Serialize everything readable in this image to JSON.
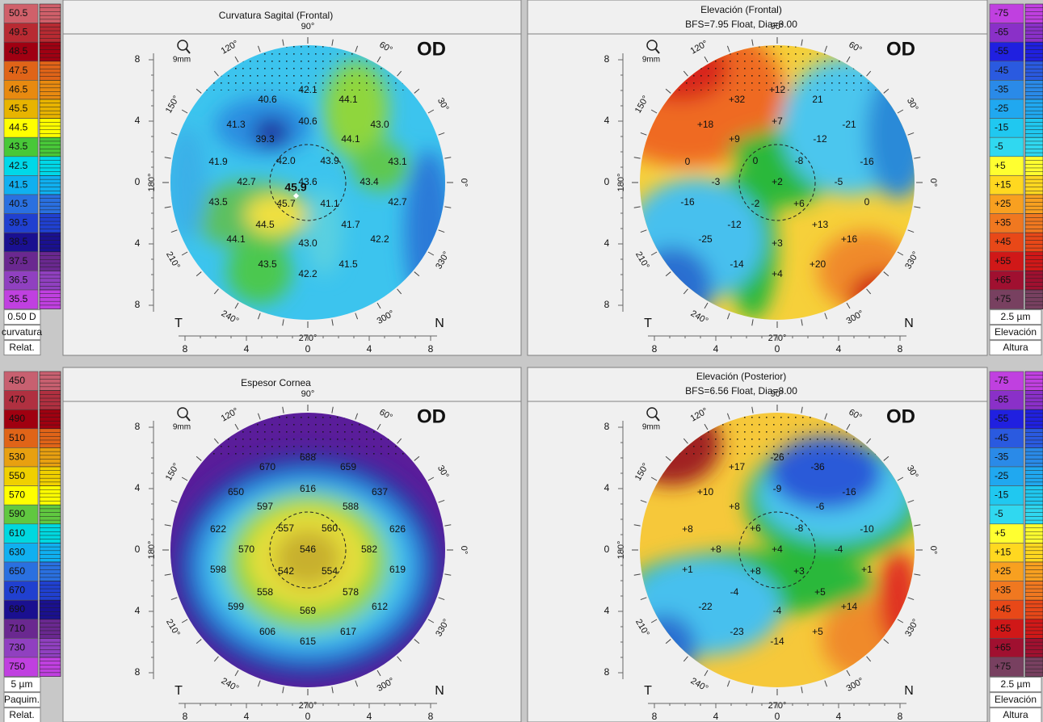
{
  "eye": "OD",
  "zoom": "9mm",
  "temporal": "T",
  "nasal": "N",
  "angles": [
    "90°",
    "60°",
    "30°",
    "0°",
    "330°",
    "300°",
    "270°",
    "240°",
    "210°",
    "180°",
    "150°",
    "120°"
  ],
  "axis_ticks": [
    "8",
    "4",
    "0",
    "4",
    "8"
  ],
  "scales": [
    {
      "labels": [
        "50.5",
        "49.5",
        "48.5",
        "47.5",
        "46.5",
        "45.5",
        "44.5",
        "43.5",
        "42.5",
        "41.5",
        "40.5",
        "39.5",
        "38.5",
        "37.5",
        "36.5",
        "35.5"
      ],
      "colors": [
        "#d0606a",
        "#b82a32",
        "#a00012",
        "#e06418",
        "#e88a10",
        "#e8b400",
        "#ffff00",
        "#48c838",
        "#00d8e8",
        "#10b0f0",
        "#2a70e0",
        "#2040d0",
        "#1a1090",
        "#6a2890",
        "#9040c0",
        "#c040e0"
      ],
      "step": "0.50 D",
      "unit": "curvatura",
      "mode": "Relat."
    },
    {
      "labels": [
        "-75",
        "-65",
        "-55",
        "-45",
        "-35",
        "-25",
        "-15",
        "-5",
        "+5",
        "+15",
        "+25",
        "+35",
        "+45",
        "+55",
        "+65",
        "+75"
      ],
      "colors": [
        "#c040e0",
        "#8a30c8",
        "#2020e0",
        "#2a5ae0",
        "#2a8ae8",
        "#20a8f0",
        "#20c8f0",
        "#30d8f0",
        "#ffff30",
        "#ffd820",
        "#f8a020",
        "#f07820",
        "#e84818",
        "#d01818",
        "#a01030",
        "#784060"
      ],
      "step": "2.5 µm",
      "unit": "Elevación",
      "mode": "Altura"
    },
    {
      "labels": [
        "450",
        "470",
        "490",
        "510",
        "530",
        "550",
        "570",
        "590",
        "610",
        "630",
        "650",
        "670",
        "690",
        "710",
        "730",
        "750"
      ],
      "colors": [
        "#c86070",
        "#b03040",
        "#a00010",
        "#e06418",
        "#e8a010",
        "#f0d000",
        "#ffff00",
        "#60c840",
        "#00d8e0",
        "#10b0f0",
        "#2a70e0",
        "#2040d0",
        "#1a1090",
        "#6a2890",
        "#9040c0",
        "#c040e0"
      ],
      "step": "5 µm",
      "unit": "Paquim.",
      "mode": "Relat."
    }
  ],
  "maps": [
    {
      "title": "Curvatura Sagital (Frontal)",
      "values": [
        "42.1",
        "40.6",
        "44.1",
        "41.3",
        "40.6",
        "43.0",
        "39.3",
        "44.1",
        "41.9",
        "42.0",
        "43.9",
        "43.1",
        "42.7",
        "43.6",
        "43.4",
        "43.5",
        "45.7",
        "41.1",
        "42.7",
        "44.5",
        "41.7",
        "44.1",
        "43.0",
        "42.2",
        "43.5",
        "41.5",
        "42.2"
      ],
      "peak": "45.9"
    },
    {
      "title": "Elevación (Frontal)",
      "subtitle": "BFS=7.95 Float, Dia=8.00",
      "values": [
        "+12",
        "+32",
        "21",
        "+18",
        "+7",
        "-21",
        "+9",
        "-12",
        "0",
        "0",
        "-8",
        "-16",
        "-3",
        "+2",
        "-5",
        "-16",
        "-2",
        "+6",
        "0",
        "-12",
        "+13",
        "-25",
        "+3",
        "+16",
        "-14",
        "+20",
        "+4"
      ]
    },
    {
      "title": "Espesor Cornea",
      "values": [
        "688",
        "670",
        "659",
        "650",
        "616",
        "637",
        "597",
        "588",
        "622",
        "557",
        "560",
        "626",
        "570",
        "546",
        "582",
        "598",
        "542",
        "554",
        "619",
        "558",
        "578",
        "599",
        "569",
        "612",
        "606",
        "617",
        "615"
      ]
    },
    {
      "title": "Elevación (Posterior)",
      "subtitle": "BFS=6.56 Float, Dia=8.00",
      "values": [
        "-26",
        "+17",
        "-36",
        "+10",
        "-9",
        "-16",
        "+8",
        "-6",
        "+8",
        "+6",
        "-8",
        "-10",
        "+8",
        "+4",
        "-4",
        "+1",
        "+8",
        "+3",
        "+1",
        "-4",
        "+5",
        "-22",
        "-4",
        "+14",
        "-23",
        "+5",
        "-14"
      ]
    }
  ]
}
